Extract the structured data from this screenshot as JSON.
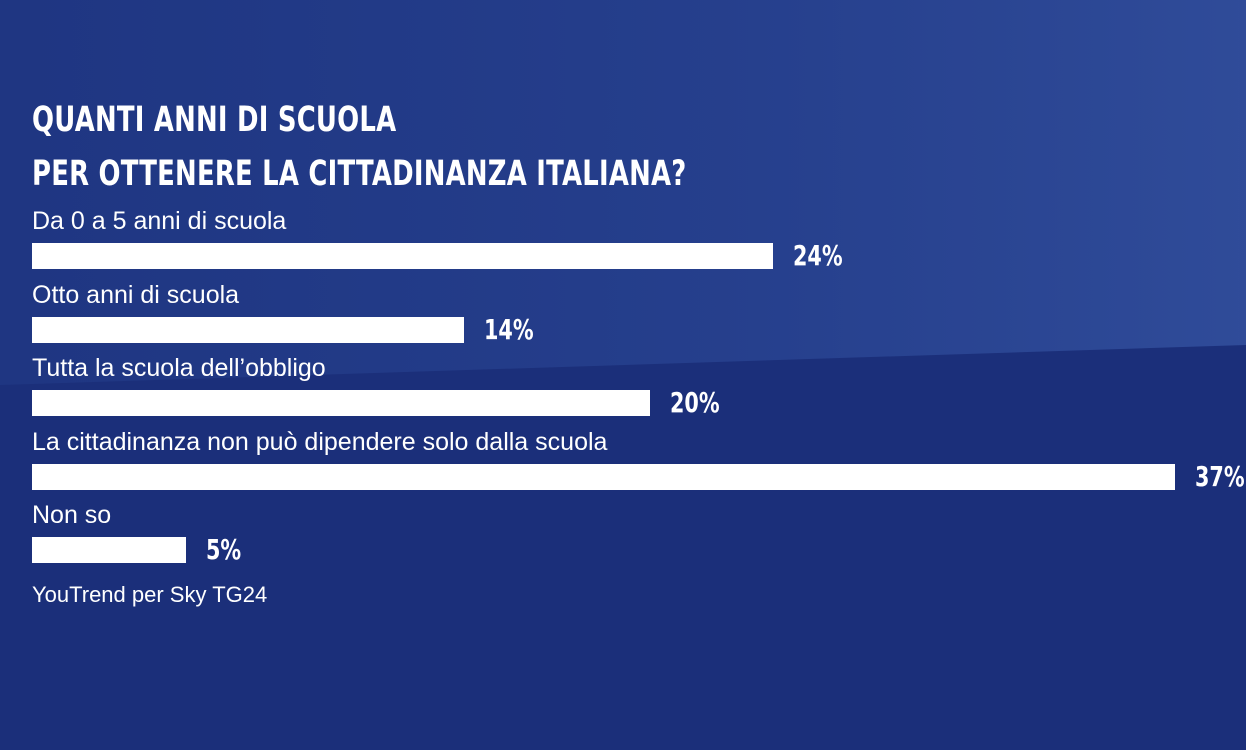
{
  "chart_data": {
    "type": "bar",
    "orientation": "horizontal",
    "title_lines": [
      "QUANTI ANNI DI SCUOLA",
      "PER OTTENERE LA CITTADINANZA ITALIANA?"
    ],
    "categories": [
      "Da 0 a 5 anni di scuola",
      "Otto anni di scuola",
      "Tutta la scuola dell’obbligo",
      "La cittadinanza non può dipendere solo dalla scuola",
      "Non so"
    ],
    "values": [
      24,
      14,
      20,
      37,
      5
    ],
    "value_labels": [
      "24%",
      "14%",
      "20%",
      "37%",
      "5%"
    ],
    "xlim": [
      0,
      37
    ],
    "bar_color": "#ffffff",
    "source": "YouTrend per Sky TG24"
  },
  "colors": {
    "background": "#1b2f7a",
    "text": "#ffffff"
  }
}
